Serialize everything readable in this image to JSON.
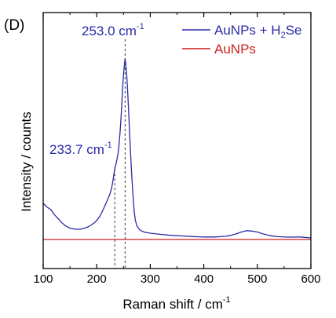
{
  "chart_data": {
    "type": "line",
    "panel_label": "(D)",
    "xlabel": "Raman shift / cm",
    "xlabel_sup": "-1",
    "ylabel": "Intensity / counts",
    "xlim": [
      100,
      600
    ],
    "xticks": [
      100,
      200,
      300,
      400,
      500,
      600
    ],
    "xtick_labels": [
      "100",
      "200",
      "300",
      "400",
      "500",
      "600"
    ],
    "ylim": [
      0,
      100
    ],
    "yticks_shown": false,
    "grid": false,
    "legend_position": "top-right",
    "legend": [
      {
        "parts": [
          "AuNPs + H",
          "2",
          "Se"
        ],
        "color": "#2b2aa8"
      },
      {
        "parts": [
          "AuNPs"
        ],
        "color": "#cc1f1f"
      }
    ],
    "annotations": [
      {
        "base": "253.0 cm",
        "sup": "-1",
        "x": 253.0,
        "color": "#2b2aa8"
      },
      {
        "base": "233.7 cm",
        "sup": "-1",
        "x": 233.7,
        "color": "#2b2aa8"
      }
    ],
    "series": [
      {
        "color": "#2b2aa8",
        "x": [
          100,
          105,
          110,
          115,
          120,
          125,
          130,
          135,
          140,
          145,
          150,
          155,
          160,
          165,
          170,
          175,
          180,
          185,
          190,
          195,
          200,
          205,
          210,
          215,
          220,
          225,
          228,
          230,
          232,
          234,
          236,
          238,
          240,
          242,
          244,
          246,
          248,
          250,
          252,
          253,
          254,
          256,
          258,
          260,
          262,
          264,
          266,
          268,
          270,
          272,
          275,
          280,
          285,
          290,
          300,
          320,
          340,
          360,
          380,
          400,
          420,
          440,
          450,
          460,
          470,
          480,
          490,
          500,
          510,
          520,
          530,
          540,
          560,
          580,
          600
        ],
        "y": [
          18.5,
          17.0,
          16.0,
          15.0,
          13.0,
          11.5,
          10.0,
          8.5,
          7.3,
          6.4,
          5.8,
          5.5,
          5.3,
          5.2,
          5.3,
          5.6,
          6.0,
          6.6,
          7.4,
          8.4,
          9.7,
          11.5,
          14.0,
          17.0,
          20.0,
          23.5,
          26.5,
          29.5,
          33.0,
          36.5,
          38.5,
          41.0,
          44.0,
          49.0,
          56.0,
          65.0,
          75.0,
          84.0,
          90.0,
          92.0,
          90.0,
          84.0,
          74.0,
          63.0,
          51.0,
          40.0,
          30.0,
          21.5,
          14.5,
          10.0,
          7.0,
          5.0,
          4.2,
          3.7,
          3.2,
          2.6,
          2.1,
          1.8,
          1.5,
          1.3,
          1.3,
          1.6,
          2.1,
          2.8,
          3.8,
          4.5,
          4.3,
          3.8,
          2.9,
          2.2,
          1.7,
          1.4,
          1.2,
          1.3,
          0.8
        ]
      },
      {
        "color": "#cc1f1f",
        "x": [
          100,
          600
        ],
        "y": [
          0.0,
          0.0
        ]
      }
    ]
  }
}
